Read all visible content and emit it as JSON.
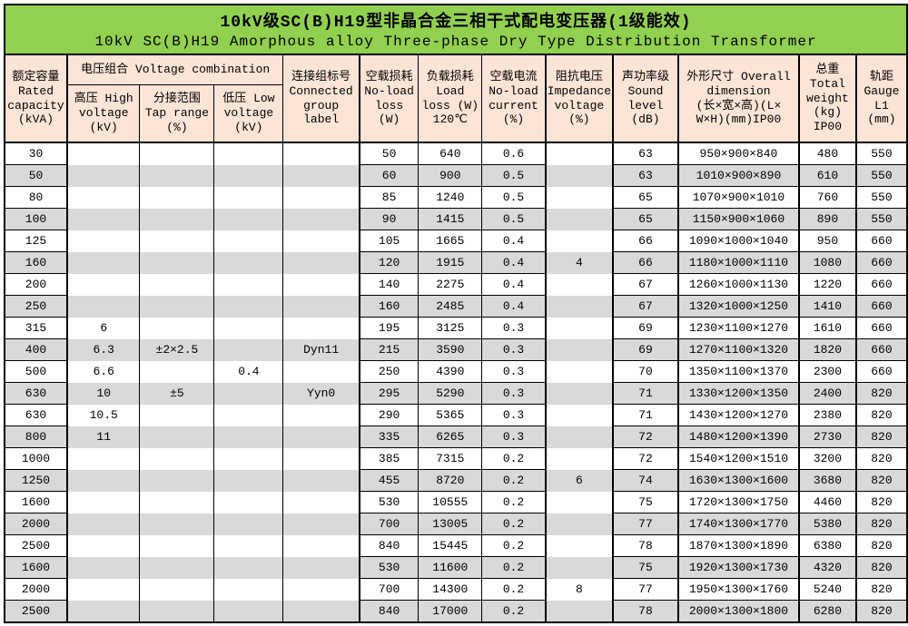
{
  "title": {
    "zh": "10kV级SC(B)H19型非晶合金三相干式配电变压器(1级能效)",
    "en": "10kV SC(B)H19 Amorphous alloy Three-phase Dry Type Distribution Transformer"
  },
  "table": {
    "group_header": "电压组合 Voltage combination",
    "headers": {
      "capacity": "额定容量\nRated\ncapacity\n(kVA)",
      "high_voltage": "高压 High\nvoltage\n(kV)",
      "tap_range": "分接范围\nTap range\n(%)",
      "low_voltage": "低压 Low\nvoltage\n(kV)",
      "group_label": "连接组标号\nConnected\ngroup\nlabel",
      "no_load_loss": "空载损耗\nNo-load\nloss\n(W)",
      "load_loss": "负载损耗\nLoad\nloss (W)\n120℃",
      "no_load_current": "空载电流\nNo-load\ncurrent\n(%)",
      "impedance_voltage": "阻抗电压\nImpedance\nvoltage\n(%)",
      "sound_level": "声功率级\nSound\nlevel\n(dB)",
      "dimension": "外形尺寸 Overall\ndimension\n(长×宽×高)(L×\nW×H)(mm)IP00",
      "total_weight": "总重\nTotal\nweight\n(kg)\nIP00",
      "gauge": "轨距\nGauge\nL1\n(mm)"
    },
    "rows": [
      [
        "30",
        "",
        "",
        "",
        "",
        "50",
        "640",
        "0.6",
        "",
        "63",
        "950×900×840",
        "480",
        "550"
      ],
      [
        "50",
        "",
        "",
        "",
        "",
        "60",
        "900",
        "0.5",
        "",
        "63",
        "1010×900×890",
        "610",
        "550"
      ],
      [
        "80",
        "",
        "",
        "",
        "",
        "85",
        "1240",
        "0.5",
        "",
        "65",
        "1070×900×1010",
        "760",
        "550"
      ],
      [
        "100",
        "",
        "",
        "",
        "",
        "90",
        "1415",
        "0.5",
        "",
        "65",
        "1150×900×1060",
        "890",
        "550"
      ],
      [
        "125",
        "",
        "",
        "",
        "",
        "105",
        "1665",
        "0.4",
        "",
        "66",
        "1090×1000×1040",
        "950",
        "660"
      ],
      [
        "160",
        "",
        "",
        "",
        "",
        "120",
        "1915",
        "0.4",
        "4",
        "66",
        "1180×1000×1110",
        "1080",
        "660"
      ],
      [
        "200",
        "",
        "",
        "",
        "",
        "140",
        "2275",
        "0.4",
        "",
        "67",
        "1260×1000×1130",
        "1220",
        "660"
      ],
      [
        "250",
        "",
        "",
        "",
        "",
        "160",
        "2485",
        "0.4",
        "",
        "67",
        "1320×1000×1250",
        "1410",
        "660"
      ],
      [
        "315",
        "6",
        "",
        "",
        "",
        "195",
        "3125",
        "0.3",
        "",
        "69",
        "1230×1100×1270",
        "1610",
        "660"
      ],
      [
        "400",
        "6.3",
        "±2×2.5",
        "",
        "Dyn11",
        "215",
        "3590",
        "0.3",
        "",
        "69",
        "1270×1100×1320",
        "1820",
        "660"
      ],
      [
        "500",
        "6.6",
        "",
        "0.4",
        "",
        "250",
        "4390",
        "0.3",
        "",
        "70",
        "1350×1100×1370",
        "2300",
        "660"
      ],
      [
        "630",
        "10",
        "±5",
        "",
        "Yyn0",
        "295",
        "5290",
        "0.3",
        "",
        "71",
        "1330×1200×1350",
        "2400",
        "820"
      ],
      [
        "630",
        "10.5",
        "",
        "",
        "",
        "290",
        "5365",
        "0.3",
        "",
        "71",
        "1430×1200×1270",
        "2380",
        "820"
      ],
      [
        "800",
        "11",
        "",
        "",
        "",
        "335",
        "6265",
        "0.3",
        "",
        "72",
        "1480×1200×1390",
        "2730",
        "820"
      ],
      [
        "1000",
        "",
        "",
        "",
        "",
        "385",
        "7315",
        "0.2",
        "",
        "72",
        "1540×1200×1510",
        "3200",
        "820"
      ],
      [
        "1250",
        "",
        "",
        "",
        "",
        "455",
        "8720",
        "0.2",
        "6",
        "74",
        "1630×1300×1600",
        "3680",
        "820"
      ],
      [
        "1600",
        "",
        "",
        "",
        "",
        "530",
        "10555",
        "0.2",
        "",
        "75",
        "1720×1300×1750",
        "4460",
        "820"
      ],
      [
        "2000",
        "",
        "",
        "",
        "",
        "700",
        "13005",
        "0.2",
        "",
        "77",
        "1740×1300×1770",
        "5380",
        "820"
      ],
      [
        "2500",
        "",
        "",
        "",
        "",
        "840",
        "15445",
        "0.2",
        "",
        "78",
        "1870×1300×1890",
        "6380",
        "820"
      ],
      [
        "1600",
        "",
        "",
        "",
        "",
        "530",
        "11600",
        "0.2",
        "",
        "75",
        "1920×1300×1730",
        "4320",
        "820"
      ],
      [
        "2000",
        "",
        "",
        "",
        "",
        "700",
        "14300",
        "0.2",
        "8",
        "77",
        "1950×1300×1760",
        "5240",
        "820"
      ],
      [
        "2500",
        "",
        "",
        "",
        "",
        "840",
        "17000",
        "0.2",
        "",
        "78",
        "2000×1300×1800",
        "6280",
        "820"
      ]
    ],
    "colors": {
      "title_bg": "#92D050",
      "header_bg": "#FCE4D6",
      "stripe": "#D9D9D9"
    }
  }
}
